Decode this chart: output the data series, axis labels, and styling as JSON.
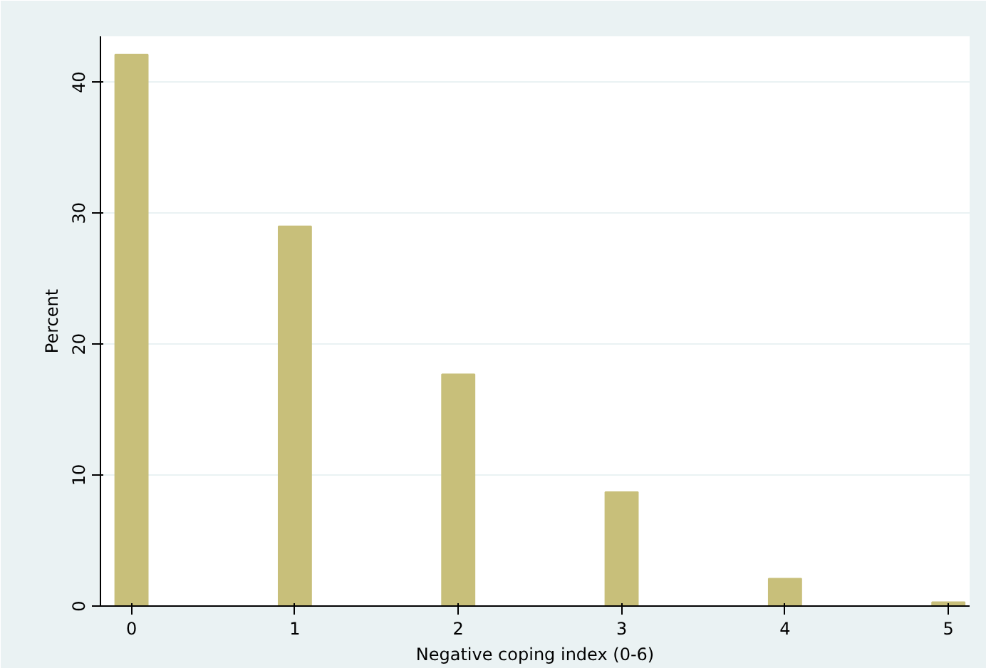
{
  "chart_data": {
    "type": "bar",
    "xlabel": "Negative coping index (0-6)",
    "ylabel": "Percent",
    "x": [
      0,
      1,
      2,
      3,
      4,
      5
    ],
    "values": [
      42.1,
      29.0,
      17.7,
      8.7,
      2.1,
      0.3
    ],
    "color": "#c8bf7a",
    "xlim": [
      -0.19,
      5.13
    ],
    "ylim": [
      0,
      43.5
    ],
    "xticks": [
      0,
      1,
      2,
      3,
      4,
      5
    ],
    "yticks": [
      0,
      10,
      20,
      30,
      40
    ],
    "grid": "y"
  }
}
